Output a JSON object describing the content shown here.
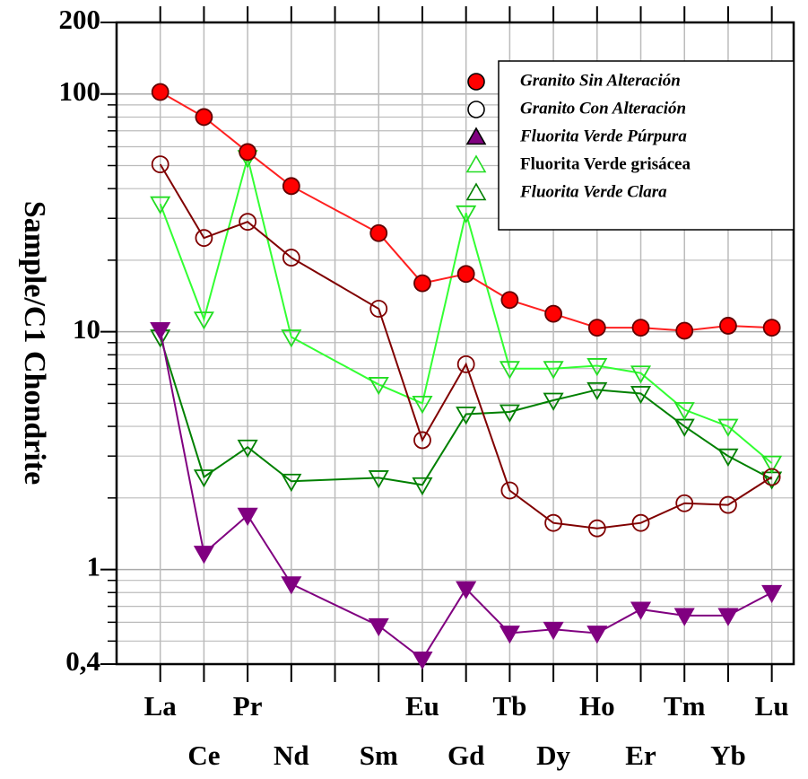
{
  "chart_data": {
    "type": "line",
    "y_label": "Sample/C1 Chondrite",
    "categories": [
      "La",
      "Ce",
      "Pr",
      "Nd",
      null,
      "Sm",
      "Eu",
      "Gd",
      "Tb",
      "Dy",
      "Ho",
      "Er",
      "Tm",
      "Yb",
      "Lu"
    ],
    "log_y": true,
    "grid": true,
    "ylim": [
      0.4,
      200
    ],
    "yticks": [
      {
        "value": 0.4,
        "label": "0,4"
      },
      1,
      10,
      100,
      200
    ],
    "legend_position": "upper right",
    "series": [
      {
        "name": "Granito Sin Alteración",
        "color": "#ff2020",
        "marker": "circle",
        "marker_fill": "#ff0000",
        "marker_edge": "#600000",
        "legend_style": "italic",
        "values": [
          102,
          80,
          57,
          41,
          null,
          26,
          16,
          17.5,
          13.6,
          11.9,
          10.4,
          10.4,
          10.1,
          10.6,
          10.4
        ]
      },
      {
        "name": "Granito Con Alteración",
        "color": "#800000",
        "marker": "circle",
        "marker_fill": "none",
        "marker_edge": "#800000",
        "legend_style": "italic",
        "values": [
          50.6,
          24.8,
          29,
          20.5,
          null,
          12.5,
          3.5,
          7.3,
          2.15,
          1.57,
          1.49,
          1.57,
          1.9,
          1.87,
          2.45
        ]
      },
      {
        "name": "Fluorita Verde Púrpura",
        "color": "#800080",
        "marker": "triangle",
        "marker_fill": "#800080",
        "marker_edge": "#800080",
        "legend_style": "italic",
        "values": [
          10.2,
          1.17,
          1.69,
          0.87,
          null,
          0.58,
          0.42,
          0.83,
          0.54,
          0.56,
          0.54,
          0.68,
          0.64,
          0.64,
          0.8
        ]
      },
      {
        "name": "Fluorita Verde grisácea",
        "color": "#33ff33",
        "marker": "triangle",
        "marker_fill": "none",
        "marker_edge": "#22dd22",
        "legend_style": "normal",
        "values": [
          34.5,
          11.3,
          54,
          9.5,
          null,
          6.0,
          5.0,
          31.6,
          7.0,
          7.0,
          7.2,
          6.7,
          4.7,
          4.0,
          2.8
        ]
      },
      {
        "name": "Fluorita Verde Clara",
        "color": "#008000",
        "marker": "triangle",
        "marker_fill": "none",
        "marker_edge": "#008000",
        "legend_style": "italic",
        "values": [
          9.5,
          2.45,
          3.27,
          2.35,
          null,
          2.43,
          2.27,
          4.5,
          4.6,
          5.15,
          5.7,
          5.5,
          4.0,
          3.0,
          2.4
        ]
      }
    ]
  }
}
